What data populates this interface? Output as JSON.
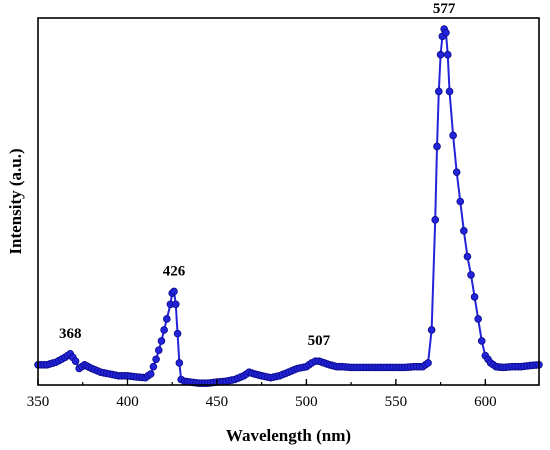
{
  "chart_data": {
    "type": "line",
    "title": "",
    "xlabel": "Wavelength (nm)",
    "ylabel": "Intensity (a.u.)",
    "xlim": [
      350,
      630
    ],
    "ylim": [
      0,
      100
    ],
    "x_ticks": [
      350,
      400,
      450,
      500,
      550,
      600
    ],
    "y_ticks_shown": false,
    "grid": false,
    "legend": "none",
    "series_color": "#2323d9",
    "marker": "circle",
    "series": [
      {
        "x": [
          350,
          355,
          360,
          365,
          368,
          371,
          373,
          376,
          380,
          385,
          390,
          395,
          400,
          405,
          410,
          413,
          416,
          419,
          422,
          424,
          425,
          426,
          427,
          428,
          429,
          430,
          432,
          435,
          440,
          445,
          450,
          455,
          460,
          465,
          468,
          471,
          475,
          480,
          485,
          490,
          495,
          500,
          503,
          505,
          507,
          510,
          513,
          517,
          520,
          525,
          530,
          535,
          540,
          545,
          550,
          555,
          560,
          565,
          568,
          570,
          572,
          573,
          574,
          575,
          576,
          577,
          578,
          579,
          580,
          582,
          584,
          586,
          588,
          590,
          592,
          594,
          596,
          598,
          600,
          603,
          606,
          610,
          615,
          620,
          625,
          630
        ],
        "y": [
          5.5,
          5.5,
          6.2,
          7.5,
          8.5,
          6.5,
          4.5,
          5.5,
          4.5,
          3.5,
          3.0,
          2.5,
          2.5,
          2.2,
          2.0,
          3.0,
          7.0,
          12.0,
          18.0,
          22.0,
          25.0,
          25.5,
          22.0,
          14.0,
          6.0,
          1.5,
          1.0,
          0.8,
          0.5,
          0.5,
          0.8,
          1.0,
          1.5,
          2.5,
          3.5,
          3.0,
          2.5,
          2.0,
          2.5,
          3.5,
          4.5,
          5.0,
          6.0,
          6.5,
          6.5,
          6.0,
          5.5,
          5.0,
          5.0,
          4.8,
          4.8,
          4.8,
          4.8,
          4.8,
          4.8,
          4.8,
          5.0,
          5.0,
          6.0,
          15.0,
          45.0,
          65.0,
          80.0,
          90.0,
          95.0,
          97.0,
          96.0,
          90.0,
          80.0,
          68.0,
          58.0,
          50.0,
          42.0,
          35.0,
          30.0,
          24.0,
          18.0,
          12.0,
          8.0,
          6.0,
          5.0,
          4.8,
          5.0,
          5.0,
          5.3,
          5.5
        ]
      }
    ],
    "annotations": [
      {
        "text": "368",
        "x": 368,
        "y": 8.5
      },
      {
        "text": "426",
        "x": 426,
        "y": 25.5
      },
      {
        "text": "507",
        "x": 507,
        "y": 6.5
      },
      {
        "text": "577",
        "x": 577,
        "y": 97.0
      }
    ]
  }
}
